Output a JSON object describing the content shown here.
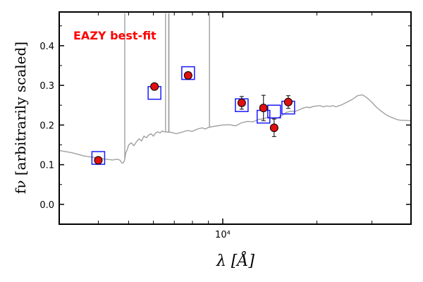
{
  "chart_data": {
    "type": "scatter",
    "title": "",
    "xlabel": "λ [Å]",
    "ylabel": "fν [arbitrarily scaled]",
    "x_scale": "log",
    "xlim": [
      3000,
      40000
    ],
    "ylim": [
      -0.05,
      0.485
    ],
    "x_tick_labels": [
      "10⁴"
    ],
    "x_major_ticks": [
      10000
    ],
    "x_minor_ticks": [
      4000,
      5000,
      6000,
      7000,
      8000,
      9000,
      20000,
      30000,
      40000
    ],
    "y_ticks": [
      0.0,
      0.1,
      0.2,
      0.3,
      0.4
    ],
    "y_tick_labels": [
      "0.0",
      "0.1",
      "0.2",
      "0.3",
      "0.4"
    ],
    "grid": false,
    "annotation": {
      "text": "EAZY best-fit",
      "color": "#ff0000"
    },
    "colors": {
      "template": "#a0a0a0",
      "model_photometry": "#1a1aff",
      "observed": "#e01010",
      "errorbar": "#000000"
    },
    "series": [
      {
        "kind": "line",
        "role": "template",
        "x": [
          3000,
          3300,
          3600,
          3900,
          4200,
          4450,
          4600,
          4700,
          4750,
          4800,
          4850,
          4870,
          4900,
          4960,
          5000,
          5100,
          5200,
          5300,
          5400,
          5500,
          5600,
          5700,
          5800,
          5900,
          6000,
          6100,
          6200,
          6300,
          6400,
          6500,
          6800,
          7100,
          7400,
          7700,
          8000,
          8300,
          8600,
          8800,
          9000,
          9300,
          9600,
          10000,
          10500,
          11000,
          11500,
          12000,
          12500,
          13000,
          13500,
          14000,
          14500,
          15000,
          15500,
          16000,
          16500,
          17000,
          17500,
          18000,
          18500,
          19000,
          19500,
          20000,
          20500,
          21000,
          21500,
          22000,
          22500,
          23000,
          24000,
          25000,
          26000,
          27000,
          28000,
          29000,
          30000,
          31000,
          32000,
          33000,
          34000,
          35000,
          36000,
          37000,
          38000,
          40000
        ],
        "y": [
          0.136,
          0.13,
          0.122,
          0.118,
          0.114,
          0.112,
          0.114,
          0.111,
          0.105,
          0.104,
          0.11,
          0.118,
          0.13,
          0.14,
          0.15,
          0.155,
          0.148,
          0.158,
          0.165,
          0.16,
          0.172,
          0.168,
          0.175,
          0.178,
          0.172,
          0.18,
          0.183,
          0.18,
          0.185,
          0.183,
          0.182,
          0.178,
          0.182,
          0.186,
          0.184,
          0.19,
          0.193,
          0.19,
          0.194,
          0.196,
          0.198,
          0.2,
          0.201,
          0.198,
          0.206,
          0.209,
          0.208,
          0.214,
          0.216,
          0.22,
          0.215,
          0.218,
          0.225,
          0.232,
          0.235,
          0.234,
          0.238,
          0.242,
          0.245,
          0.244,
          0.247,
          0.248,
          0.249,
          0.246,
          0.248,
          0.247,
          0.249,
          0.246,
          0.251,
          0.258,
          0.265,
          0.274,
          0.276,
          0.268,
          0.257,
          0.245,
          0.236,
          0.228,
          0.222,
          0.218,
          0.214,
          0.212,
          0.212,
          0.211
        ],
        "emission_lines": [
          {
            "x": 4861,
            "y": 0.482
          },
          {
            "x": 6563,
            "y": 0.482
          },
          {
            "x": 6716,
            "y": 0.482
          },
          {
            "x": 6731,
            "y": 0.482
          },
          {
            "x": 9069,
            "y": 0.482
          }
        ]
      },
      {
        "kind": "square",
        "role": "model_photometry",
        "x": [
          4000,
          6050,
          7750,
          11500,
          13500,
          14600,
          16200
        ],
        "y": [
          0.117,
          0.281,
          0.331,
          0.25,
          0.221,
          0.234,
          0.244
        ]
      },
      {
        "kind": "point",
        "role": "observed",
        "x": [
          4000,
          6050,
          7750,
          11500,
          13500,
          14600,
          16200
        ],
        "y": [
          0.111,
          0.297,
          0.325,
          0.256,
          0.243,
          0.193,
          0.258
        ],
        "yerr": [
          0.004,
          0.004,
          0.004,
          0.016,
          0.032,
          0.022,
          0.016
        ]
      }
    ]
  }
}
